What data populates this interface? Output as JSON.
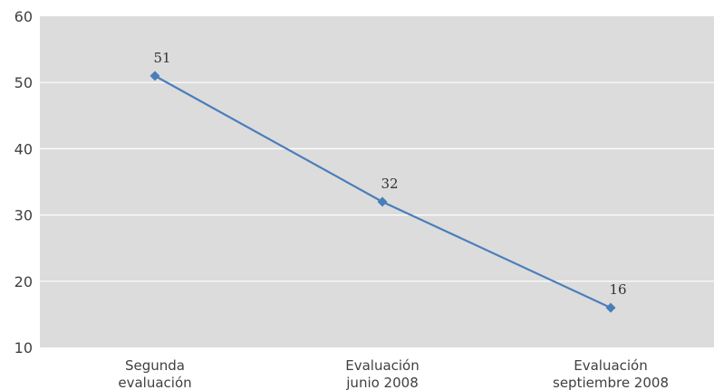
{
  "chart_data": {
    "type": "line",
    "title": "",
    "xlabel": "",
    "ylabel": "",
    "categories": [
      [
        "Segunda",
        "evaluación"
      ],
      [
        "Evaluación",
        "junio 2008"
      ],
      [
        "Evaluación",
        "septiembre 2008"
      ]
    ],
    "series": [
      {
        "values": [
          51,
          32,
          16
        ]
      }
    ],
    "data_labels": [
      "51",
      "32",
      "16"
    ],
    "y_ticks": [
      "10",
      "20",
      "30",
      "40",
      "50",
      "60"
    ],
    "ylim": [
      10,
      60
    ],
    "grid": true,
    "legend": "none",
    "colors": {
      "plot_background": "#dcdcdc",
      "gridline": "#ffffff",
      "series_line": "#4a7ebb",
      "marker": "#4a7ebb"
    }
  }
}
